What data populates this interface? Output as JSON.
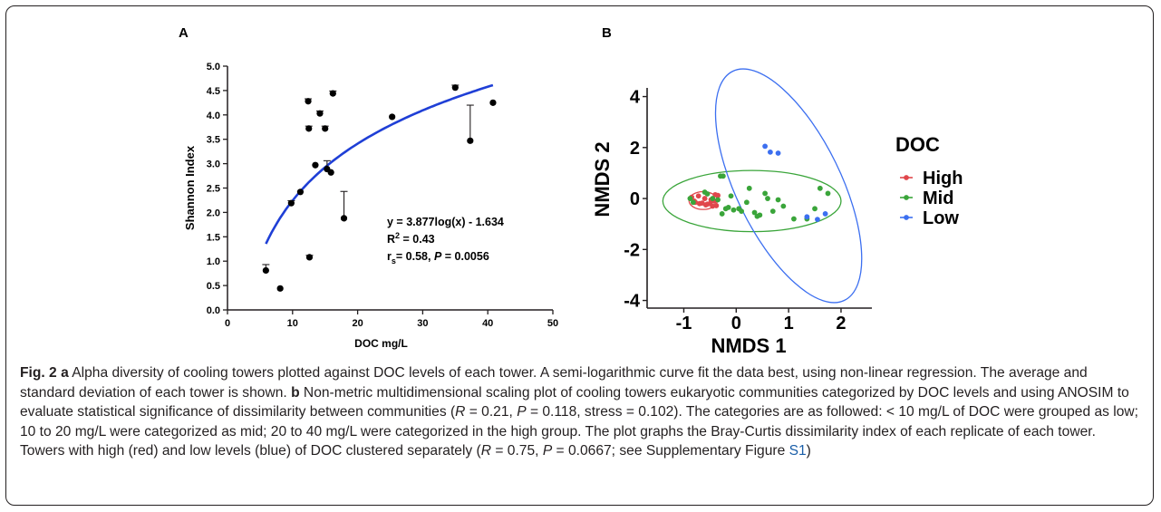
{
  "chart_data": [
    {
      "panel": "A",
      "type": "scatter",
      "xlabel": "DOC mg/L",
      "ylabel": "Shannon Index",
      "xlim": [
        0,
        50
      ],
      "ylim": [
        0,
        5
      ],
      "xticks": [
        "0",
        "10",
        "20",
        "30",
        "40",
        "50"
      ],
      "yticks": [
        "0.0",
        "0.5",
        "1.0",
        "1.5",
        "2.0",
        "2.5",
        "3.0",
        "3.5",
        "4.0",
        "4.5",
        "5.0"
      ],
      "points": [
        {
          "x": 5.9,
          "y": 0.81,
          "err": 0.12
        },
        {
          "x": 8.1,
          "y": 0.44
        },
        {
          "x": 9.8,
          "y": 2.19,
          "err": 0.05
        },
        {
          "x": 11.2,
          "y": 2.42
        },
        {
          "x": 12.4,
          "y": 4.28,
          "err": 0.05
        },
        {
          "x": 12.5,
          "y": 3.72,
          "err": 0.05
        },
        {
          "x": 12.6,
          "y": 1.08,
          "err": 0.04
        },
        {
          "x": 13.5,
          "y": 2.97
        },
        {
          "x": 14.2,
          "y": 4.03,
          "err": 0.05
        },
        {
          "x": 15.0,
          "y": 3.72,
          "err": 0.05
        },
        {
          "x": 15.3,
          "y": 2.89,
          "err": 0.17
        },
        {
          "x": 15.9,
          "y": 2.82
        },
        {
          "x": 16.2,
          "y": 4.44,
          "err": 0.05
        },
        {
          "x": 17.9,
          "y": 1.88,
          "err": 0.55
        },
        {
          "x": 25.3,
          "y": 3.96
        },
        {
          "x": 35.0,
          "y": 4.56,
          "err": 0.05
        },
        {
          "x": 37.3,
          "y": 3.47,
          "err": 0.73
        },
        {
          "x": 40.8,
          "y": 4.25
        }
      ],
      "fit": {
        "type": "log",
        "x_range": [
          5.9,
          40.8
        ],
        "color": "#1f3fd6"
      },
      "annotations": {
        "line1": "y = 3.877log(x) - 1.634",
        "line2_main": "R",
        "line2_sup": "2",
        "line2_rest": " = 0.43",
        "line3_main": "r",
        "line3_sub": "s",
        "line3_mid": "= 0.58, ",
        "line3_p": "P",
        "line3_rest": " = 0.0056"
      }
    },
    {
      "panel": "B",
      "type": "scatter",
      "xlabel": "NMDS 1",
      "ylabel": "NMDS 2",
      "xlim": [
        -1.7,
        2.9
      ],
      "ylim": [
        -4.3,
        5.3
      ],
      "xticks": [
        -1,
        0,
        1,
        2
      ],
      "yticks": [
        -4,
        -2,
        0,
        2,
        4
      ],
      "legend": {
        "title": "DOC",
        "placement": "right"
      },
      "series": [
        {
          "name": "High",
          "color": "#e0474c",
          "points": [
            [
              -0.85,
              0.05
            ],
            [
              -0.8,
              -0.1
            ],
            [
              -0.78,
              -0.15
            ],
            [
              -0.72,
              0.1
            ],
            [
              -0.7,
              -0.2
            ],
            [
              -0.65,
              -0.18
            ],
            [
              -0.6,
              0.0
            ],
            [
              -0.58,
              -0.25
            ],
            [
              -0.55,
              -0.22
            ],
            [
              -0.5,
              -0.2
            ],
            [
              -0.48,
              -0.05
            ],
            [
              -0.45,
              -0.3
            ],
            [
              -0.42,
              -0.1
            ],
            [
              -0.38,
              -0.28
            ],
            [
              -0.35,
              0.12
            ],
            [
              -0.4,
              0.15
            ]
          ],
          "ellipse": {
            "cx": -0.63,
            "cy": -0.08,
            "rx": 0.27,
            "ry": 0.35,
            "angle_deg": 0
          }
        },
        {
          "name": "Mid",
          "color": "#3aa53a",
          "points": [
            [
              -0.88,
              0.0
            ],
            [
              -0.82,
              -0.15
            ],
            [
              -0.6,
              0.25
            ],
            [
              -0.55,
              0.18
            ],
            [
              -0.45,
              0.0
            ],
            [
              -0.35,
              -0.05
            ],
            [
              -0.3,
              0.88
            ],
            [
              -0.25,
              0.88
            ],
            [
              -0.27,
              -0.6
            ],
            [
              -0.2,
              -0.4
            ],
            [
              -0.15,
              -0.35
            ],
            [
              -0.1,
              0.1
            ],
            [
              -0.05,
              -0.45
            ],
            [
              0.05,
              -0.4
            ],
            [
              0.1,
              -0.5
            ],
            [
              0.2,
              -0.15
            ],
            [
              0.25,
              0.4
            ],
            [
              0.35,
              -0.55
            ],
            [
              0.4,
              -0.7
            ],
            [
              0.45,
              -0.65
            ],
            [
              0.55,
              0.2
            ],
            [
              0.6,
              0.0
            ],
            [
              0.7,
              -0.5
            ],
            [
              0.8,
              -0.05
            ],
            [
              0.9,
              -0.3
            ],
            [
              1.1,
              -0.8
            ],
            [
              1.35,
              -0.8
            ],
            [
              1.5,
              -0.4
            ],
            [
              1.6,
              0.4
            ],
            [
              1.75,
              0.2
            ]
          ],
          "ellipse": {
            "cx": 0.3,
            "cy": -0.1,
            "rx": 1.7,
            "ry": 1.2,
            "angle_deg": 0
          }
        },
        {
          "name": "Low",
          "color": "#3c6ff0",
          "points": [
            [
              0.55,
              2.05
            ],
            [
              0.65,
              1.82
            ],
            [
              0.8,
              1.78
            ],
            [
              1.35,
              -0.72
            ],
            [
              1.55,
              -0.82
            ],
            [
              1.7,
              -0.6
            ]
          ],
          "ellipse": {
            "cx": 1.0,
            "cy": 0.5,
            "rx": 1.0,
            "ry": 5.0,
            "angle_deg": -26
          }
        }
      ]
    }
  ],
  "panel_labels": {
    "a": "A",
    "b": "B"
  },
  "caption": {
    "fig": "Fig. 2",
    "part_a_letter": "a",
    "part_a_text": " Alpha diversity of cooling towers plotted against DOC levels of each tower. A semi-logarithmic curve fit the data best, using non-linear regression. The average and standard deviation of each tower is shown. ",
    "part_b_letter": "b",
    "part_b_text_1": " Non-metric multidimensional scaling plot of cooling towers eukaryotic communities categorized by DOC levels and using ANOSIM to evaluate statistical significance of dissimilarity between communities (",
    "r1": "R",
    "part_b_text_2": " = 0.21, ",
    "p1": "P",
    "part_b_text_3": " = 0.118, stress = 0.102). The categories are as followed: < 10 mg/L of DOC were grouped as low; 10 to 20 mg/L were categorized as mid; 20 to 40 mg/L were categorized in the high group. The plot graphs the Bray-Curtis dissimilarity index of each replicate of each tower. Towers with high (red) and low levels (blue) of DOC clustered separately (",
    "r2": "R",
    "part_b_text_4": " = 0.75, ",
    "p2": "P",
    "part_b_text_5": " = 0.0667; see Supplementary Figure ",
    "link": "S1",
    "part_b_text_6": ")"
  }
}
